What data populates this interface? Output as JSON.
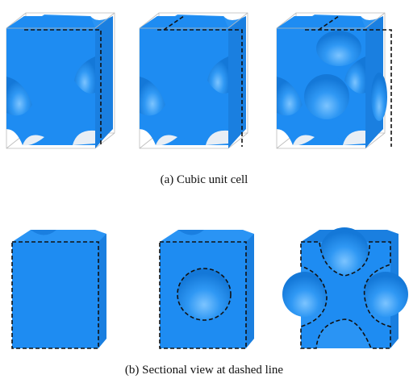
{
  "figure": {
    "subfigures": [
      {
        "caption": "(a) Cubic unit cell"
      },
      {
        "caption": "(b) Sectional view at dashed line"
      }
    ]
  }
}
